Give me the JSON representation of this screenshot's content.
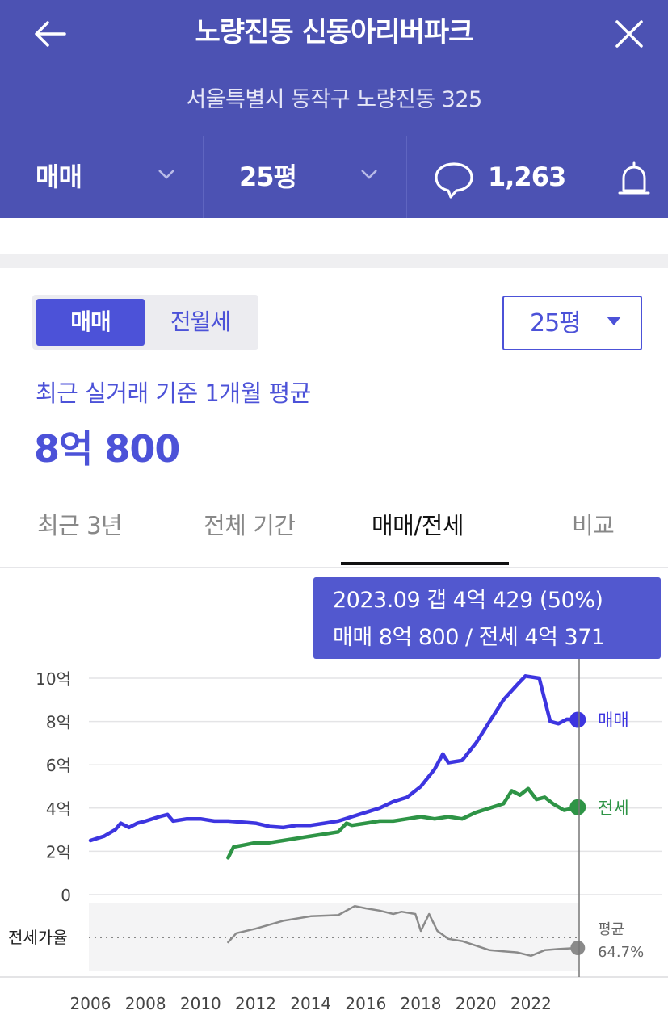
{
  "header": {
    "title": "노량진동 신동아리버파크",
    "address": "서울특별시 동작구 노량진동 325",
    "back_icon": "arrow-left-icon",
    "close_icon": "close-icon"
  },
  "filters": {
    "trade_type": "매매",
    "size": "25평",
    "comment_count": "1,263",
    "comment_icon": "speech-bubble-icon",
    "alert_icon": "bell-icon"
  },
  "segment": {
    "options": [
      "매매",
      "전월세"
    ],
    "selected": "매매"
  },
  "size_select": {
    "value": "25평"
  },
  "average": {
    "caption": "최근 실거래 기준 1개월 평균",
    "value": "8억 800"
  },
  "tabs": [
    {
      "label": "최근 3년",
      "active": false
    },
    {
      "label": "전체 기간",
      "active": false
    },
    {
      "label": "매매/전세",
      "active": true
    },
    {
      "label": "비교",
      "active": false
    }
  ],
  "tooltip": {
    "line1": "2023.09  갭 4억 429 (50%)",
    "line2": "매매 8억 800 / 전세 4억 371"
  },
  "colors": {
    "header_bg": "#4c52b3",
    "accent": "#4c52d8",
    "sale_line": "#3d35e0",
    "jeonse_line": "#2e9446",
    "ratio_line": "#8a8a8a"
  },
  "chart_data": {
    "type": "line",
    "x_ticks": [
      "2006",
      "2008",
      "2010",
      "2012",
      "2014",
      "2016",
      "2018",
      "2020",
      "2022"
    ],
    "y_ticks": [
      "10억",
      "8억",
      "6억",
      "4억",
      "2억",
      "0"
    ],
    "ylim": [
      0,
      10
    ],
    "y_unit": "억",
    "xlim": [
      2006,
      2023.75
    ],
    "series": [
      {
        "name": "매매",
        "color": "#3d35e0",
        "points": [
          [
            2006.0,
            2.5
          ],
          [
            2006.5,
            2.7
          ],
          [
            2006.9,
            3.0
          ],
          [
            2007.1,
            3.3
          ],
          [
            2007.4,
            3.1
          ],
          [
            2007.7,
            3.3
          ],
          [
            2008.0,
            3.4
          ],
          [
            2008.5,
            3.6
          ],
          [
            2008.8,
            3.7
          ],
          [
            2009.0,
            3.4
          ],
          [
            2009.5,
            3.5
          ],
          [
            2010.0,
            3.5
          ],
          [
            2010.5,
            3.4
          ],
          [
            2011.0,
            3.4
          ],
          [
            2011.5,
            3.35
          ],
          [
            2012.0,
            3.3
          ],
          [
            2012.5,
            3.15
          ],
          [
            2013.0,
            3.1
          ],
          [
            2013.5,
            3.2
          ],
          [
            2014.0,
            3.2
          ],
          [
            2014.5,
            3.3
          ],
          [
            2015.0,
            3.4
          ],
          [
            2015.5,
            3.6
          ],
          [
            2016.0,
            3.8
          ],
          [
            2016.5,
            4.0
          ],
          [
            2017.0,
            4.3
          ],
          [
            2017.5,
            4.5
          ],
          [
            2018.0,
            5.0
          ],
          [
            2018.5,
            5.8
          ],
          [
            2018.8,
            6.5
          ],
          [
            2019.0,
            6.1
          ],
          [
            2019.5,
            6.2
          ],
          [
            2020.0,
            7.0
          ],
          [
            2020.5,
            8.0
          ],
          [
            2021.0,
            9.0
          ],
          [
            2021.5,
            9.7
          ],
          [
            2021.8,
            10.1
          ],
          [
            2022.3,
            10.0
          ],
          [
            2022.5,
            9.0
          ],
          [
            2022.7,
            8.0
          ],
          [
            2023.0,
            7.9
          ],
          [
            2023.3,
            8.1
          ],
          [
            2023.7,
            8.08
          ]
        ]
      },
      {
        "name": "전세",
        "color": "#2e9446",
        "points": [
          [
            2011.0,
            1.7
          ],
          [
            2011.2,
            2.2
          ],
          [
            2011.6,
            2.3
          ],
          [
            2012.0,
            2.4
          ],
          [
            2012.5,
            2.4
          ],
          [
            2013.0,
            2.5
          ],
          [
            2013.5,
            2.6
          ],
          [
            2014.0,
            2.7
          ],
          [
            2014.5,
            2.8
          ],
          [
            2015.0,
            2.9
          ],
          [
            2015.3,
            3.3
          ],
          [
            2015.5,
            3.2
          ],
          [
            2016.0,
            3.3
          ],
          [
            2016.5,
            3.4
          ],
          [
            2017.0,
            3.4
          ],
          [
            2017.5,
            3.5
          ],
          [
            2018.0,
            3.6
          ],
          [
            2018.5,
            3.5
          ],
          [
            2019.0,
            3.6
          ],
          [
            2019.5,
            3.5
          ],
          [
            2020.0,
            3.8
          ],
          [
            2020.5,
            4.0
          ],
          [
            2021.0,
            4.2
          ],
          [
            2021.3,
            4.8
          ],
          [
            2021.6,
            4.6
          ],
          [
            2021.9,
            4.9
          ],
          [
            2022.2,
            4.4
          ],
          [
            2022.5,
            4.5
          ],
          [
            2022.8,
            4.2
          ],
          [
            2023.2,
            3.9
          ],
          [
            2023.7,
            4.04
          ]
        ]
      },
      {
        "name": "전세가율",
        "color": "#8a8a8a",
        "unit": "%",
        "average_label": "평균",
        "average_value": "64.7%",
        "points": [
          [
            2011.0,
            55
          ],
          [
            2011.3,
            63
          ],
          [
            2012.0,
            67
          ],
          [
            2013.0,
            74
          ],
          [
            2014.0,
            78
          ],
          [
            2015.0,
            79
          ],
          [
            2015.6,
            87
          ],
          [
            2016.0,
            85
          ],
          [
            2016.5,
            83
          ],
          [
            2017.0,
            80
          ],
          [
            2017.3,
            82
          ],
          [
            2017.8,
            80
          ],
          [
            2018.0,
            65
          ],
          [
            2018.3,
            80
          ],
          [
            2018.6,
            65
          ],
          [
            2019.0,
            58
          ],
          [
            2019.5,
            56
          ],
          [
            2020.0,
            52
          ],
          [
            2020.5,
            48
          ],
          [
            2021.0,
            47
          ],
          [
            2021.5,
            46
          ],
          [
            2022.0,
            43
          ],
          [
            2022.5,
            48
          ],
          [
            2023.0,
            49
          ],
          [
            2023.7,
            50
          ]
        ]
      }
    ],
    "end_labels": [
      "매매",
      "전세"
    ],
    "ratio_label": "전세가율",
    "marker_date": "2023.09"
  }
}
